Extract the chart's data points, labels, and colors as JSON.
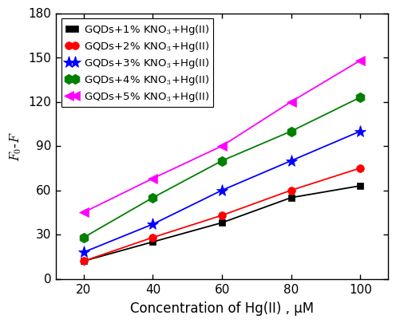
{
  "x": [
    20,
    40,
    60,
    80,
    100
  ],
  "series": [
    {
      "label": "GQDs+1% KNO$_3$+Hg(II)",
      "y": [
        12,
        25,
        38,
        55,
        63
      ],
      "color": "black",
      "marker": "s",
      "markersize": 6,
      "linewidth": 1.3
    },
    {
      "label": "GQDs+2% KNO$_3$+Hg(II)",
      "y": [
        12,
        28,
        43,
        60,
        75
      ],
      "color": "#ff0000",
      "marker": "o",
      "markersize": 7,
      "linewidth": 1.3
    },
    {
      "label": "GQDs+3% KNO$_3$+Hg(II)",
      "y": [
        18,
        37,
        60,
        80,
        100
      ],
      "color": "#0000ff",
      "marker": "*",
      "markersize": 11,
      "linewidth": 1.3
    },
    {
      "label": "GQDs+4% KNO$_3$+Hg(II)",
      "y": [
        28,
        55,
        80,
        100,
        123
      ],
      "color": "#008000",
      "marker": "h",
      "markersize": 9,
      "linewidth": 1.3
    },
    {
      "label": "GQDs+5% KNO$_3$+Hg(II)",
      "y": [
        45,
        68,
        90,
        120,
        148
      ],
      "color": "#ff00ff",
      "marker": "<",
      "markersize": 9,
      "linewidth": 1.3
    }
  ],
  "xlabel": "Concentration of Hg(II) , μM",
  "ylabel": "$F_0$-$F$",
  "xlim": [
    12,
    108
  ],
  "ylim": [
    0,
    180
  ],
  "yticks": [
    0,
    30,
    60,
    90,
    120,
    150,
    180
  ],
  "xticks": [
    20,
    40,
    60,
    80,
    100
  ],
  "label_fontsize": 12,
  "tick_fontsize": 11,
  "legend_fontsize": 9.5
}
